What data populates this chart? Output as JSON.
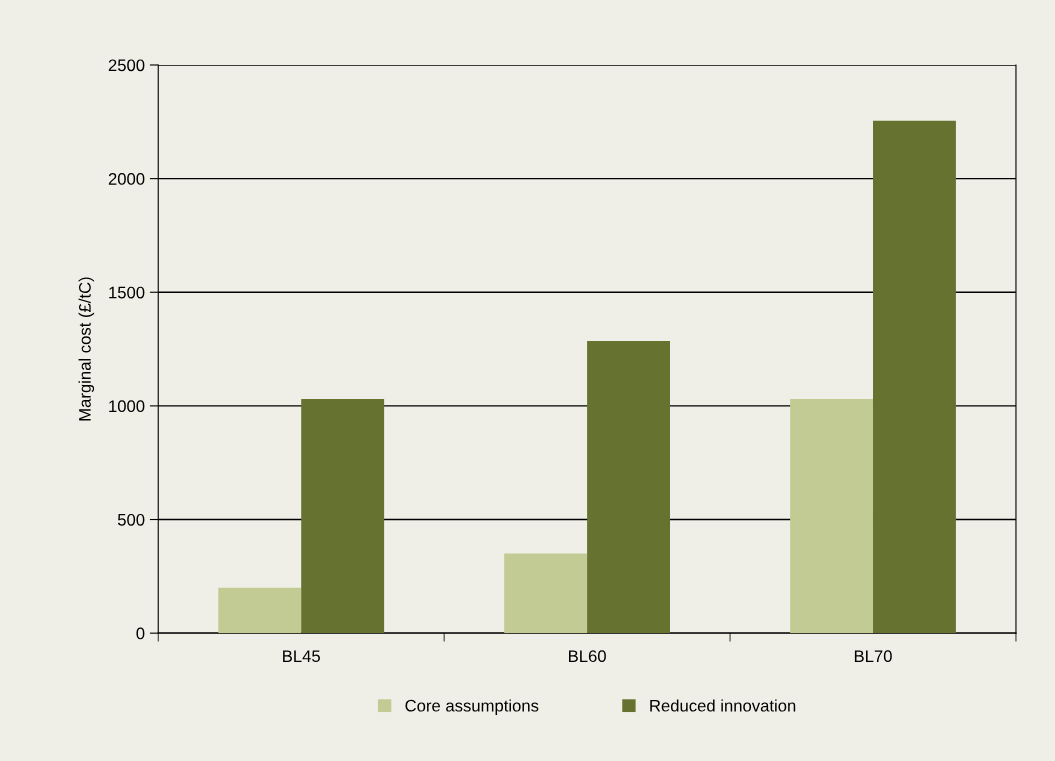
{
  "chart_data": {
    "type": "bar",
    "ylabel": "Marginal cost (£/tC)",
    "categories": [
      "BL45",
      "BL60",
      "BL70"
    ],
    "series": [
      {
        "name": "Core assumptions",
        "color": "#c2cb94",
        "values": [
          200,
          350,
          1030
        ]
      },
      {
        "name": "Reduced innovation",
        "color": "#66722f",
        "values": [
          1030,
          1285,
          2255
        ]
      }
    ],
    "ylim": [
      0,
      2500
    ],
    "yticks": [
      0,
      500,
      1000,
      1500,
      2000,
      2500
    ],
    "grid": "y",
    "legend": "bottom"
  }
}
